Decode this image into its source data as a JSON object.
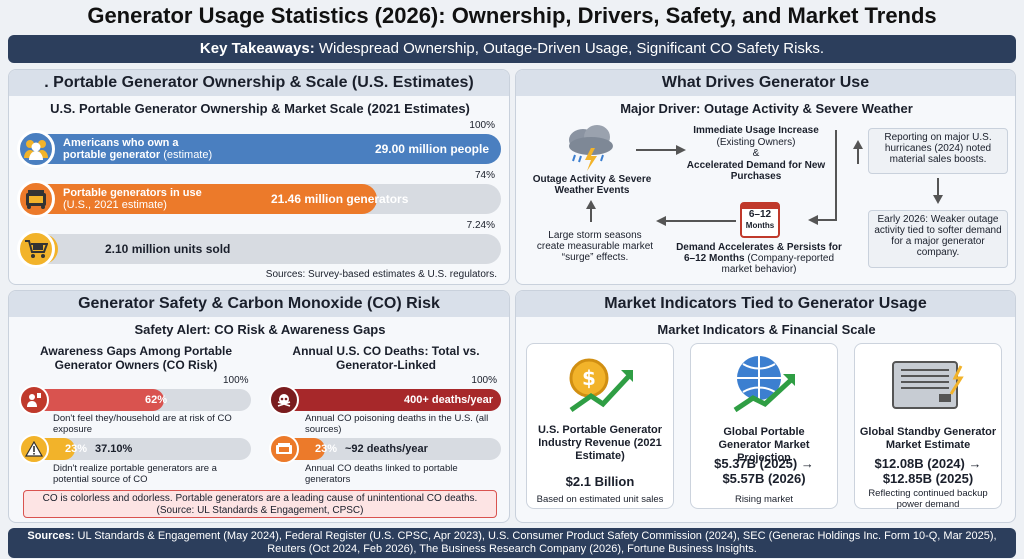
{
  "title": "Generator Usage Statistics (2026): Ownership, Drivers, Safety, and Market Trends",
  "banner": {
    "lead": "Key Takeaways:",
    "text": " Widespread Ownership, Outage-Driven Usage, Significant CO Safety Risks."
  },
  "ownership": {
    "heading": ". Portable Generator Ownership & Scale (U.S. Estimates)",
    "subtitle": "U.S. Portable Generator Ownership & Market Scale (2021 Estimates)",
    "bars": [
      {
        "pct_label": "100%",
        "label_bold": "Americans who own a",
        "label_bold2": "portable generator",
        "label_norm": " (estimate)",
        "value": "29.00 million people",
        "fill": 1.0,
        "color": "#4a7fc0",
        "icon": "people-icon"
      },
      {
        "pct_label": "74%",
        "label_bold": "Portable generators in use",
        "label_norm": "(U.S., 2021 estimate)",
        "value": "21.46 million generators",
        "fill": 0.74,
        "color": "#ec7a2a",
        "icon": "generator-icon"
      },
      {
        "pct_label": "7.24%",
        "value": "2.10 million units sold",
        "fill": 0.0724,
        "color": "#f2b32a",
        "icon": "cart-icon"
      }
    ],
    "source": "Sources: Survey-based estimates & U.S. regulators."
  },
  "drivers": {
    "heading": "What Drives Generator Use",
    "subtitle": "Major Driver: Outage Activity & Severe Weather",
    "weather_label": "Outage Activity & Severe Weather Events",
    "usage_title": "Immediate Usage Increase",
    "usage_sub": "(Existing Owners)",
    "usage_amp": "&",
    "usage_demand": "Accelerated Demand for New Purchases",
    "calendar_top": "6–12",
    "calendar_bottom": "Months",
    "persist_title": "Demand Accelerates & Persists for 6–12 Months",
    "persist_sub": " (Company-reported market behavior)",
    "storm_text": "Large storm seasons create measurable market “surge” effects.",
    "note1": "Reporting on major U.S. hurricanes (2024) noted material sales boosts.",
    "note2": "Early 2026: Weaker outage activity tied to softer demand for a major generator company."
  },
  "safety": {
    "heading": "Generator Safety & Carbon Monoxide (CO) Risk",
    "subtitle": "Safety Alert: CO Risk & Awareness Gaps",
    "left_title": "Awareness Gaps Among Portable Generator Owners (CO Risk)",
    "right_title": "Annual U.S. CO Deaths: Total vs. Generator-Linked",
    "left_pct": "100%",
    "right_pct": "100%",
    "awareness": [
      {
        "value": "62%",
        "fill": 0.62,
        "desc": "Don't feel they/household are at risk of CO exposure",
        "icon": "person-alert-icon"
      },
      {
        "value": "23%",
        "value2": "37.10%",
        "fill": 0.23,
        "desc": "Didn't realize portable generators are a potential source of CO",
        "icon": "warning-icon"
      }
    ],
    "deaths": [
      {
        "value": "400+ deaths/year",
        "fill": 1.0,
        "desc": "Annual CO poisoning deaths in the U.S. (all sources)",
        "icon": "skull-icon"
      },
      {
        "value": "23%",
        "value2": "~92 deaths/year",
        "fill": 0.23,
        "desc": "Annual CO deaths linked to portable generators",
        "icon": "generator-icon"
      }
    ],
    "note": "CO is colorless and odorless. Portable generators are a leading cause of unintentional CO deaths. (Source: UL Standards & Engagement, CPSC)"
  },
  "market": {
    "heading": "Market Indicators Tied to Generator Usage",
    "subtitle": "Market Indicators & Financial Scale",
    "cards": [
      {
        "title": "U.S. Portable Generator Industry Revenue (2021 Estimate)",
        "value": "$2.1 Billion",
        "desc": "Based on estimated unit sales",
        "icon": "dollar-growth-icon"
      },
      {
        "title": "Global Portable Generator Market Projection",
        "value": "$5.37B (2025) → $5.57B (2026)",
        "desc": "Rising market",
        "icon": "globe-growth-icon"
      },
      {
        "title": "Global Standby Generator Market Estimate",
        "value": "$12.08B (2024) → $12.85B (2025)",
        "desc": "Reflecting continued backup power demand",
        "icon": "standby-generator-icon"
      }
    ]
  },
  "footer": {
    "lead": "Sources:",
    "text": " UL Standards & Engagement (May 2024), Federal Register (U.S. CPSC, Apr 2023), U.S. Consumer Product Safety Commission (2024), SEC (Generac Holdings Inc. Form 10-Q, Mar 2025), Reuters (Oct 2024, Feb 2026), The Business Research Company (2026), Fortune Business Insights."
  }
}
